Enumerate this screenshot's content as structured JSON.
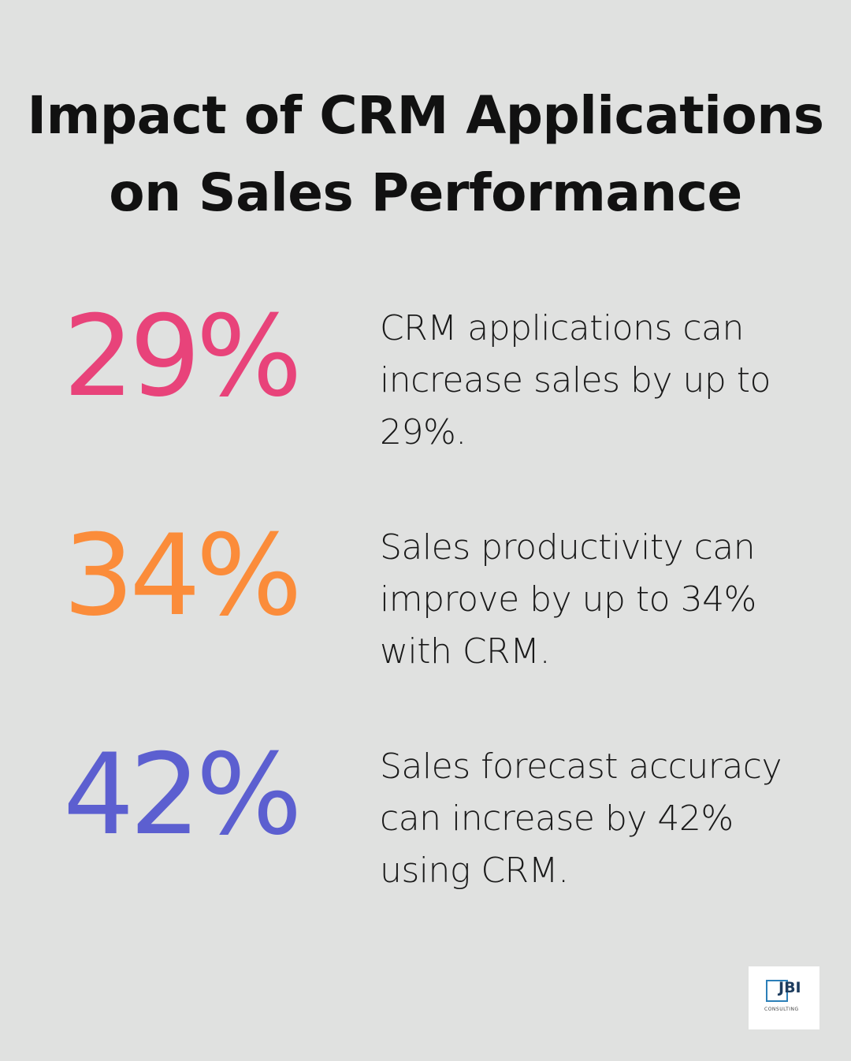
{
  "title_line1": "Impact of CRM Applications",
  "title_line2": "on Sales Performance",
  "stats": [
    {
      "value": "29%",
      "color": "#e8437a",
      "text": "CRM applications can increase sales by up to 29%."
    },
    {
      "value": "34%",
      "color": "#fb8c3a",
      "text": "Sales productivity can improve by up to 34% with CRM."
    },
    {
      "value": "42%",
      "color": "#5c5fd0",
      "text": "Sales forecast accuracy can increase by 42% using CRM."
    }
  ],
  "logo": {
    "name": "JBI",
    "subtitle": "CONSULTING"
  }
}
